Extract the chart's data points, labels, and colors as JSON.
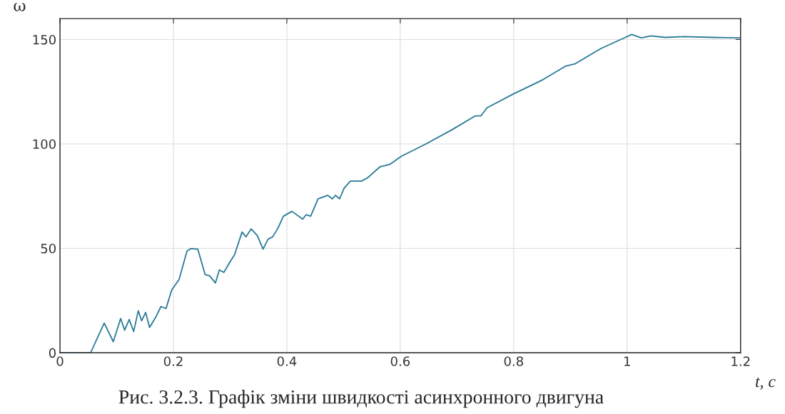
{
  "chart_data": {
    "type": "line",
    "xlabel": "t, c",
    "ylabel": "ω",
    "annotations": [
      "Рис. 3.2.3. Графік зміни швидкості асинхронного двигуна"
    ],
    "series": [
      {
        "color": "#2a7a98",
        "x": [
          0,
          0.054,
          0.078,
          0.094,
          0.107,
          0.114,
          0.122,
          0.13,
          0.138,
          0.144,
          0.151,
          0.158,
          0.17,
          0.178,
          0.187,
          0.197,
          0.21,
          0.224,
          0.231,
          0.243,
          0.256,
          0.264,
          0.274,
          0.281,
          0.289,
          0.3,
          0.308,
          0.321,
          0.328,
          0.337,
          0.348,
          0.358,
          0.367,
          0.375,
          0.384,
          0.394,
          0.409,
          0.428,
          0.434,
          0.442,
          0.455,
          0.472,
          0.48,
          0.486,
          0.493,
          0.501,
          0.512,
          0.532,
          0.543,
          0.564,
          0.581,
          0.602,
          0.644,
          0.69,
          0.732,
          0.742,
          0.753,
          0.8,
          0.849,
          0.891,
          0.908,
          0.929,
          0.954,
          0.992,
          1.008,
          1.025,
          1.042,
          1.067,
          1.101,
          1.15,
          1.193,
          1.2
        ],
        "values": [
          0,
          0,
          14.2,
          5.3,
          16.4,
          10.8,
          15.9,
          10.2,
          20.1,
          15.3,
          19.3,
          12.1,
          17.6,
          22.1,
          21.2,
          30.0,
          35.1,
          48.7,
          49.9,
          49.6,
          37.4,
          36.8,
          33.4,
          39.7,
          38.5,
          43.6,
          47.0,
          57.8,
          55.5,
          59.3,
          56.1,
          49.6,
          54.4,
          55.5,
          59.5,
          65.4,
          67.7,
          64.0,
          66.1,
          65.4,
          73.7,
          75.4,
          73.7,
          75.4,
          73.7,
          78.8,
          82.2,
          82.2,
          83.9,
          89.0,
          90.1,
          94.1,
          99.8,
          106.6,
          113.4,
          113.4,
          117.3,
          124.0,
          130.4,
          137.2,
          138.3,
          141.7,
          145.7,
          150.4,
          152.4,
          150.8,
          151.7,
          151.0,
          151.4,
          151.0,
          150.8,
          150.8
        ]
      }
    ],
    "xlim": [
      0,
      1.2
    ],
    "ylim": [
      0,
      160
    ],
    "xticks": [
      0,
      0.2,
      0.4,
      0.6,
      0.8,
      1,
      1.2
    ],
    "yticks": [
      0,
      50,
      100,
      150
    ],
    "grid": true,
    "marker": "none",
    "line_style": "solid",
    "legend": false
  }
}
